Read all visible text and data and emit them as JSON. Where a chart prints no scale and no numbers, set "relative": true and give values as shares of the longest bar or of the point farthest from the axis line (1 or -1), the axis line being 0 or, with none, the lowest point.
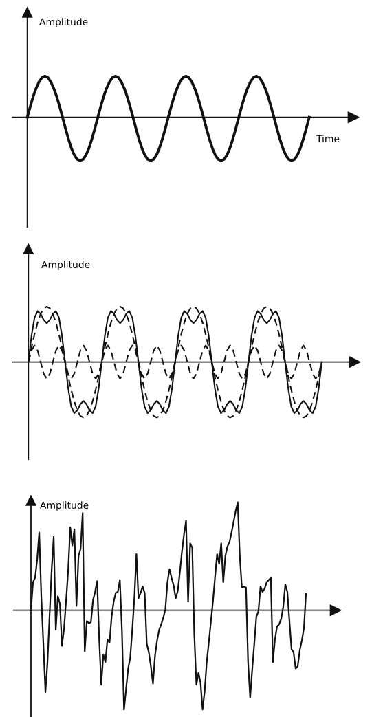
{
  "chart_data": [
    {
      "type": "line",
      "relative": true,
      "ylabel": "Amplitude",
      "xlabel": "Time",
      "categories": [
        null,
        null,
        null,
        null,
        null,
        null,
        null,
        null,
        null,
        null,
        null,
        null,
        null,
        null,
        null,
        null,
        null,
        null,
        null,
        null,
        null,
        null,
        null,
        null,
        null,
        null,
        null,
        null,
        null,
        null,
        null,
        null,
        null,
        null,
        null,
        null,
        null,
        null,
        null,
        null,
        null,
        null,
        null,
        null,
        null,
        null,
        null,
        null,
        null,
        null,
        null,
        null,
        null,
        null,
        null,
        null,
        null,
        null,
        null,
        null,
        null,
        null,
        null,
        null,
        null,
        null,
        null,
        null,
        null,
        null,
        null,
        null,
        null,
        null,
        null,
        null,
        null,
        null,
        null,
        null,
        null,
        null,
        null,
        null,
        null,
        null,
        null,
        null,
        null,
        null,
        null,
        null,
        null,
        null,
        null,
        null,
        null
      ],
      "series": [
        {
          "color": "#111111",
          "line_style": "solid",
          "values": [
            0,
            0.25,
            0.48,
            0.67,
            0.82,
            0.92,
            0.95,
            0.92,
            0.82,
            0.67,
            0.48,
            0.25,
            0,
            -0.26,
            -0.5,
            -0.71,
            -0.87,
            -0.97,
            -1,
            -0.97,
            -0.87,
            -0.71,
            -0.5,
            -0.26,
            0,
            0.25,
            0.48,
            0.67,
            0.82,
            0.92,
            0.95,
            0.92,
            0.82,
            0.67,
            0.48,
            0.25,
            0,
            -0.26,
            -0.5,
            -0.71,
            -0.87,
            -0.97,
            -1,
            -0.97,
            -0.87,
            -0.71,
            -0.5,
            -0.26,
            0,
            0.25,
            0.48,
            0.67,
            0.82,
            0.92,
            0.95,
            0.92,
            0.82,
            0.67,
            0.48,
            0.25,
            0,
            -0.26,
            -0.5,
            -0.71,
            -0.87,
            -0.97,
            -1,
            -0.97,
            -0.87,
            -0.71,
            -0.5,
            -0.26,
            0,
            0.25,
            0.48,
            0.67,
            0.82,
            0.92,
            0.95,
            0.92,
            0.82,
            0.67,
            0.48,
            0.25,
            0,
            -0.26,
            -0.5,
            -0.71,
            -0.87,
            -0.97,
            -1,
            -0.97,
            -0.87,
            -0.71,
            -0.5,
            -0.26,
            0
          ]
        }
      ]
    },
    {
      "type": "line",
      "relative": true,
      "ylabel": "Amplitude",
      "categories": [
        null,
        null,
        null,
        null,
        null,
        null,
        null,
        null,
        null,
        null,
        null,
        null,
        null,
        null,
        null,
        null,
        null,
        null,
        null,
        null,
        null,
        null,
        null,
        null,
        null,
        null,
        null,
        null,
        null,
        null,
        null,
        null,
        null,
        null,
        null,
        null,
        null,
        null,
        null,
        null,
        null,
        null,
        null,
        null,
        null,
        null,
        null,
        null,
        null,
        null,
        null,
        null,
        null,
        null,
        null,
        null,
        null,
        null,
        null,
        null,
        null,
        null,
        null,
        null,
        null,
        null,
        null,
        null,
        null,
        null,
        null,
        null,
        null,
        null,
        null,
        null,
        null,
        null,
        null,
        null,
        null,
        null,
        null,
        null,
        null,
        null,
        null,
        null,
        null,
        null,
        null,
        null,
        null,
        null,
        null,
        null,
        null
      ],
      "series": [
        {
          "color": "#111111",
          "line_style": "solid",
          "values": [
            0,
            0.47,
            0.8,
            0.92,
            0.87,
            0.76,
            0.7,
            0.76,
            0.87,
            0.92,
            0.8,
            0.47,
            0,
            -0.47,
            -0.8,
            -0.92,
            -0.87,
            -0.76,
            -0.7,
            -0.76,
            -0.87,
            -0.92,
            -0.8,
            -0.47,
            0,
            0.47,
            0.8,
            0.92,
            0.87,
            0.76,
            0.7,
            0.76,
            0.87,
            0.92,
            0.8,
            0.47,
            0,
            -0.47,
            -0.8,
            -0.92,
            -0.87,
            -0.76,
            -0.7,
            -0.76,
            -0.87,
            -0.92,
            -0.8,
            -0.47,
            0,
            0.47,
            0.8,
            0.92,
            0.87,
            0.76,
            0.7,
            0.76,
            0.87,
            0.92,
            0.8,
            0.47,
            0,
            -0.47,
            -0.8,
            -0.92,
            -0.87,
            -0.76,
            -0.7,
            -0.76,
            -0.87,
            -0.92,
            -0.8,
            -0.47,
            0,
            0.47,
            0.8,
            0.92,
            0.87,
            0.76,
            0.7,
            0.76,
            0.87,
            0.92,
            0.8,
            0.47,
            0,
            -0.47,
            -0.8,
            -0.92,
            -0.87,
            -0.76,
            -0.7,
            -0.76,
            -0.87,
            -0.92,
            -0.8,
            -0.47,
            0
          ]
        },
        {
          "color": "#111111",
          "line_style": "dashed",
          "values": [
            0,
            0.26,
            0.5,
            0.71,
            0.87,
            0.97,
            1,
            0.97,
            0.87,
            0.71,
            0.5,
            0.26,
            0,
            -0.26,
            -0.5,
            -0.71,
            -0.87,
            -0.97,
            -1,
            -0.97,
            -0.87,
            -0.71,
            -0.5,
            -0.26,
            0,
            0.26,
            0.5,
            0.71,
            0.87,
            0.97,
            1,
            0.97,
            0.87,
            0.71,
            0.5,
            0.26,
            0,
            -0.26,
            -0.5,
            -0.71,
            -0.87,
            -0.97,
            -1,
            -0.97,
            -0.87,
            -0.71,
            -0.5,
            -0.26,
            0,
            0.26,
            0.5,
            0.71,
            0.87,
            0.97,
            1,
            0.97,
            0.87,
            0.71,
            0.5,
            0.26,
            0,
            -0.26,
            -0.5,
            -0.71,
            -0.87,
            -0.97,
            -1,
            -0.97,
            -0.87,
            -0.71,
            -0.5,
            -0.26,
            0,
            0.26,
            0.5,
            0.71,
            0.87,
            0.97,
            1,
            0.97,
            0.87,
            0.71,
            0.5,
            0.26,
            0,
            -0.26,
            -0.5,
            -0.71,
            -0.87,
            -0.97,
            -1,
            -0.97,
            -0.87,
            -0.71,
            -0.5,
            -0.26,
            0
          ]
        },
        {
          "color": "#111111",
          "line_style": "dashed",
          "values": [
            0,
            0.21,
            0.3,
            0.21,
            0,
            -0.21,
            -0.3,
            -0.21,
            0,
            0.21,
            0.3,
            0.21,
            0,
            -0.21,
            -0.3,
            -0.21,
            0,
            0.21,
            0.3,
            0.21,
            0,
            -0.21,
            -0.3,
            -0.21,
            0,
            0.21,
            0.3,
            0.21,
            0,
            -0.21,
            -0.3,
            -0.21,
            0,
            0.21,
            0.3,
            0.21,
            0,
            -0.21,
            -0.3,
            -0.21,
            0,
            0.21,
            0.3,
            0.21,
            0,
            -0.21,
            -0.3,
            -0.21,
            0,
            0.21,
            0.3,
            0.21,
            0,
            -0.21,
            -0.3,
            -0.21,
            0,
            0.21,
            0.3,
            0.21,
            0,
            -0.21,
            -0.3,
            -0.21,
            0,
            0.21,
            0.3,
            0.21,
            0,
            -0.21,
            -0.3,
            -0.21,
            0,
            0.21,
            0.3,
            0.21,
            0,
            -0.21,
            -0.3,
            -0.21,
            0,
            0.21,
            0.3,
            0.21,
            0,
            -0.21,
            -0.3,
            -0.21,
            0,
            0.21,
            0.3,
            0.21,
            0,
            -0.21,
            -0.3,
            -0.21,
            0
          ]
        }
      ]
    },
    {
      "type": "line",
      "relative": true,
      "ylabel": "Amplitude",
      "categories": [
        null,
        null,
        null,
        null,
        null,
        null,
        null,
        null,
        null,
        null,
        null,
        null,
        null,
        null,
        null,
        null,
        null,
        null,
        null,
        null,
        null,
        null,
        null,
        null,
        null,
        null,
        null,
        null,
        null,
        null,
        null,
        null,
        null,
        null,
        null,
        null,
        null,
        null,
        null,
        null,
        null,
        null,
        null,
        null,
        null,
        null,
        null,
        null,
        null,
        null,
        null,
        null,
        null,
        null,
        null,
        null,
        null,
        null,
        null,
        null,
        null,
        null,
        null,
        null,
        null,
        null,
        null,
        null,
        null,
        null,
        null,
        null,
        null,
        null,
        null,
        null,
        null,
        null,
        null,
        null,
        null,
        null,
        null,
        null,
        null,
        null,
        null,
        null,
        null,
        null,
        null,
        null,
        null,
        null,
        null,
        null,
        null,
        null,
        null,
        null,
        null,
        null,
        null,
        null,
        null,
        null,
        null,
        null,
        null,
        null,
        null,
        null,
        null,
        null,
        null,
        null,
        null,
        null,
        null,
        null,
        null,
        null,
        null,
        null,
        null,
        null,
        null,
        null,
        null,
        null,
        null,
        null,
        null,
        null
      ],
      "series": [
        {
          "color": "#111111",
          "line_style": "solid",
          "values": [
            0,
            0.26,
            0.3,
            0.47,
            0.72,
            0.13,
            -0.31,
            -0.76,
            -0.48,
            -0.05,
            0.37,
            0.68,
            -0.18,
            0.13,
            0.06,
            -0.33,
            -0.17,
            0.09,
            0.37,
            0.77,
            0.6,
            0.75,
            0.04,
            0.5,
            0.57,
            0.9,
            -0.38,
            -0.1,
            -0.12,
            -0.11,
            0.09,
            0.17,
            0.27,
            -0.27,
            -0.69,
            -0.41,
            -0.48,
            -0.27,
            -0.3,
            -0.06,
            0.08,
            0.16,
            0.17,
            0.28,
            -0.19,
            -0.92,
            -0.73,
            -0.54,
            -0.44,
            -0.18,
            0.11,
            0.52,
            0.11,
            0.16,
            0.22,
            0.16,
            -0.31,
            -0.39,
            -0.52,
            -0.68,
            -0.42,
            -0.28,
            -0.18,
            -0.13,
            -0.07,
            0.01,
            0.26,
            0.38,
            0.3,
            0.23,
            0.11,
            0.18,
            0.35,
            0.54,
            0.7,
            0.83,
            0.08,
            0.62,
            0.58,
            -0.23,
            -0.69,
            -0.58,
            -0.67,
            -0.92,
            -0.75,
            -0.48,
            -0.3,
            -0.11,
            0.08,
            0.3,
            0.52,
            0.43,
            0.62,
            0.26,
            0.5,
            0.59,
            0.63,
            0.72,
            0.82,
            0.92,
            1,
            0.5,
            0.21,
            0.22,
            0.21,
            -0.48,
            -0.81,
            -0.55,
            -0.31,
            -0.06,
            -0.01,
            0.22,
            0.17,
            0.2,
            0.26,
            0.28,
            0.3,
            -0.48,
            -0.27,
            -0.15,
            -0.13,
            -0.08,
            0.03,
            0.24,
            0.17,
            -0.1,
            -0.36,
            -0.39,
            -0.54,
            -0.52,
            -0.37,
            -0.28,
            -0.17,
            0.15
          ]
        }
      ]
    }
  ]
}
